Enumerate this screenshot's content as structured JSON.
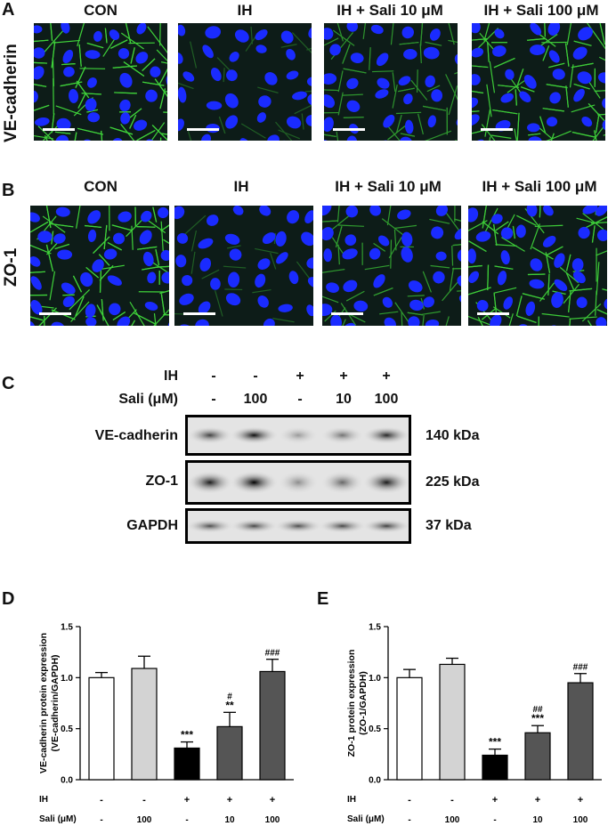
{
  "panels": {
    "A": {
      "letter": "A",
      "row_label": "VE-cadherin",
      "titles": [
        "CON",
        "IH",
        "IH + Sali 10 μM",
        "IH + Sali 100 μM"
      ]
    },
    "B": {
      "letter": "B",
      "row_label": "ZO-1",
      "titles": [
        "CON",
        "IH",
        "IH + Sali 10 μM",
        "IH + Sali 100 μM"
      ]
    },
    "C": {
      "letter": "C",
      "ih_label": "IH",
      "sali_label": "Sali (μM)",
      "ih_values": [
        "-",
        "-",
        "+",
        "+",
        "+"
      ],
      "sali_values": [
        "-",
        "100",
        "-",
        "10",
        "100"
      ],
      "blots": [
        {
          "label": "VE-cadherin",
          "kda": "140 kDa"
        },
        {
          "label": "ZO-1",
          "kda": "225 kDa"
        },
        {
          "label": "GAPDH",
          "kda": "37 kDa"
        }
      ]
    },
    "D": {
      "letter": "D"
    },
    "E": {
      "letter": "E"
    }
  },
  "colors": {
    "nuclei": "#1a2bff",
    "junction": "#3fd23a",
    "bar_con": "#ffffff",
    "bar_sali": "#d3d3d3",
    "bar_ih": "#000000",
    "bar_ihsali": "#555555"
  },
  "chart_data": [
    {
      "type": "bar",
      "panel": "D",
      "ylabel": "VE-cadherin protein expression\n(VE-cadherin/GAPDH)",
      "ylim": [
        0,
        1.5
      ],
      "yticks": [
        "0.0",
        "0.5",
        "1.0",
        "1.5"
      ],
      "row_labels": [
        "IH",
        "Sali (μM)"
      ],
      "ih": [
        "-",
        "-",
        "+",
        "+",
        "+"
      ],
      "sali": [
        "-",
        "100",
        "-",
        "10",
        "100"
      ],
      "values": [
        1.0,
        1.09,
        0.31,
        0.52,
        1.06
      ],
      "errors": [
        0.05,
        0.12,
        0.06,
        0.14,
        0.12
      ],
      "annotations": [
        [
          "",
          ""
        ],
        [
          "",
          ""
        ],
        [
          "***",
          ""
        ],
        [
          "**",
          "#"
        ],
        [
          "",
          "###"
        ]
      ]
    },
    {
      "type": "bar",
      "panel": "E",
      "ylabel": "ZO-1 protein expression\n(ZO-1/GAPDH)",
      "ylim": [
        0,
        1.5
      ],
      "yticks": [
        "0.0",
        "0.5",
        "1.0",
        "1.5"
      ],
      "row_labels": [
        "IH",
        "Sali (μM)"
      ],
      "ih": [
        "-",
        "-",
        "+",
        "+",
        "+"
      ],
      "sali": [
        "-",
        "100",
        "-",
        "10",
        "100"
      ],
      "values": [
        1.0,
        1.13,
        0.24,
        0.46,
        0.95
      ],
      "errors": [
        0.08,
        0.06,
        0.06,
        0.07,
        0.09
      ],
      "annotations": [
        [
          "",
          ""
        ],
        [
          "",
          ""
        ],
        [
          "***",
          ""
        ],
        [
          "***",
          "##"
        ],
        [
          "",
          "###"
        ]
      ]
    }
  ]
}
